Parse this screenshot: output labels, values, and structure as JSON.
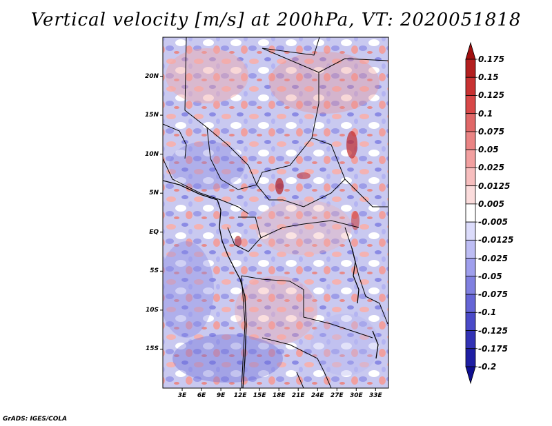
{
  "title": "Vertical velocity [m/s] at 200hPa, VT: 2020051818",
  "credit": "GrADS: IGES/COLA",
  "map": {
    "lat_labels": [
      {
        "label": "20N",
        "lat": 20
      },
      {
        "label": "15N",
        "lat": 15
      },
      {
        "label": "10N",
        "lat": 10
      },
      {
        "label": "5N",
        "lat": 5
      },
      {
        "label": "EQ",
        "lat": 0
      },
      {
        "label": "5S",
        "lat": -5
      },
      {
        "label": "10S",
        "lat": -10
      },
      {
        "label": "15S",
        "lat": -15
      }
    ],
    "lon_labels": [
      {
        "label": "3E",
        "lon": 3
      },
      {
        "label": "6E",
        "lon": 6
      },
      {
        "label": "9E",
        "lon": 9
      },
      {
        "label": "12E",
        "lon": 12
      },
      {
        "label": "15E",
        "lon": 15
      },
      {
        "label": "18E",
        "lon": 18
      },
      {
        "label": "21E",
        "lon": 21
      },
      {
        "label": "24E",
        "lon": 24
      },
      {
        "label": "27E",
        "lon": 27
      },
      {
        "label": "30E",
        "lon": 30
      },
      {
        "label": "33E",
        "lon": 33
      }
    ],
    "lon_range": [
      0,
      35
    ],
    "lat_range": [
      -20,
      25
    ]
  },
  "colorbar": {
    "levels": [
      "0.175",
      "0.15",
      "0.125",
      "0.1",
      "0.075",
      "0.05",
      "0.025",
      "0.0125",
      "0.005",
      "-0.005",
      "-0.0125",
      "-0.025",
      "-0.05",
      "-0.075",
      "-0.1",
      "-0.125",
      "-0.175",
      "-0.2"
    ],
    "colors": [
      "#a00f0f",
      "#b31f1f",
      "#c83232",
      "#d84848",
      "#e06868",
      "#ea8484",
      "#f2a0a0",
      "#f7bebe",
      "#fbdcdc",
      "#ffffff",
      "#dcdcfb",
      "#bdbdf4",
      "#9f9fed",
      "#8080e0",
      "#6565d6",
      "#4a4ac8",
      "#3232b5",
      "#1e1ea3",
      "#0e0e90"
    ]
  }
}
